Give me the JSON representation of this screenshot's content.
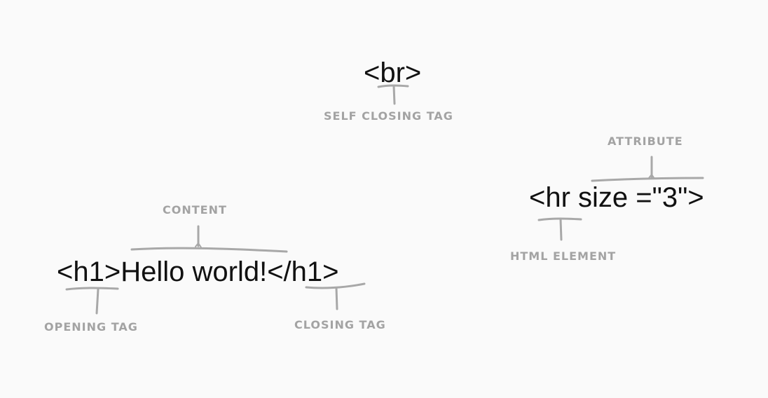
{
  "codes": {
    "br": "<br>",
    "h1_open": "<h1>",
    "h1_content": "Hello world!",
    "h1_close": "</h1>",
    "hr": "<hr size =\"3\">"
  },
  "labels": {
    "self_closing_tag": "SELF CLOSING TAG",
    "content": "CONTENT",
    "opening_tag": "OPENING TAG",
    "closing_tag": "CLOSING TAG",
    "attribute": "ATTRIBUTE",
    "html_element": "HTML ELEMENT"
  },
  "colors": {
    "background": "#fafafa",
    "code_text": "#111111",
    "label_text": "#a3a3a3",
    "annotation_line": "#a8a8a8"
  }
}
